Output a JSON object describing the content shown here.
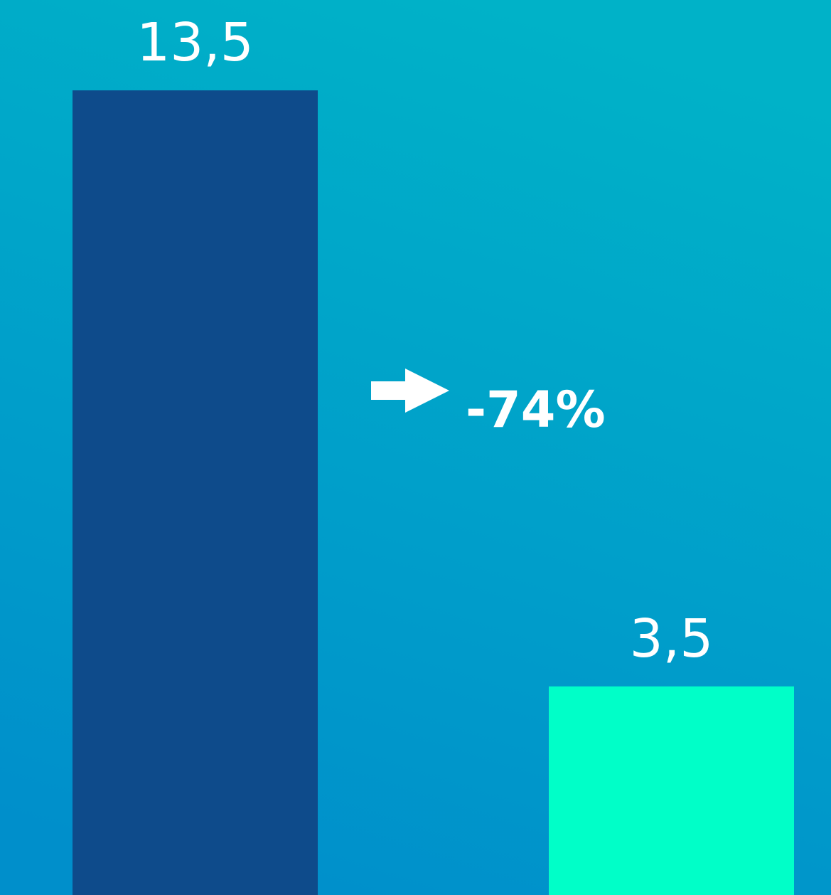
{
  "chart_data": {
    "type": "bar",
    "categories": [
      null,
      null
    ],
    "values": [
      13.5,
      3.5
    ],
    "value_labels": [
      "13,5",
      "3,5"
    ],
    "colors": [
      "#0e4b8b",
      "#00ffc8"
    ],
    "ylim": [
      0,
      13.5
    ],
    "annotation": "-74%"
  }
}
